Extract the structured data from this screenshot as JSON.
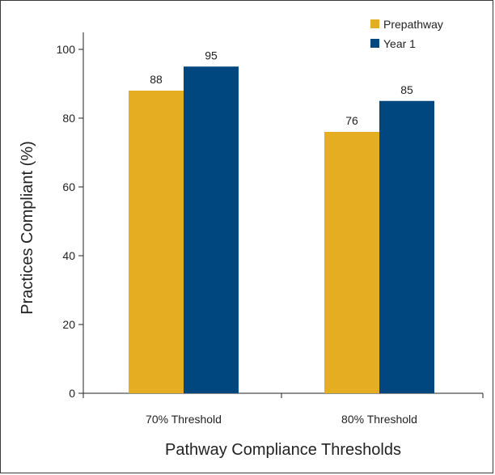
{
  "chart_data": {
    "type": "bar",
    "categories": [
      "70% Threshold",
      "80% Threshold"
    ],
    "series": [
      {
        "name": "Prepathway",
        "values": [
          88,
          76
        ]
      },
      {
        "name": "Year 1",
        "values": [
          95,
          85
        ]
      }
    ],
    "data_labels": [
      [
        "88",
        "76"
      ],
      [
        "95",
        "85"
      ]
    ],
    "title": "",
    "xlabel": "Pathway Compliance Thresholds",
    "ylabel": "Practices  Compliant (%)",
    "ylim": [
      0,
      100
    ],
    "yticks": [
      0,
      20,
      40,
      60,
      80,
      100
    ],
    "grid": false,
    "legend_position": "top-right",
    "colors": [
      "#e5ad22",
      "#00467f"
    ]
  }
}
